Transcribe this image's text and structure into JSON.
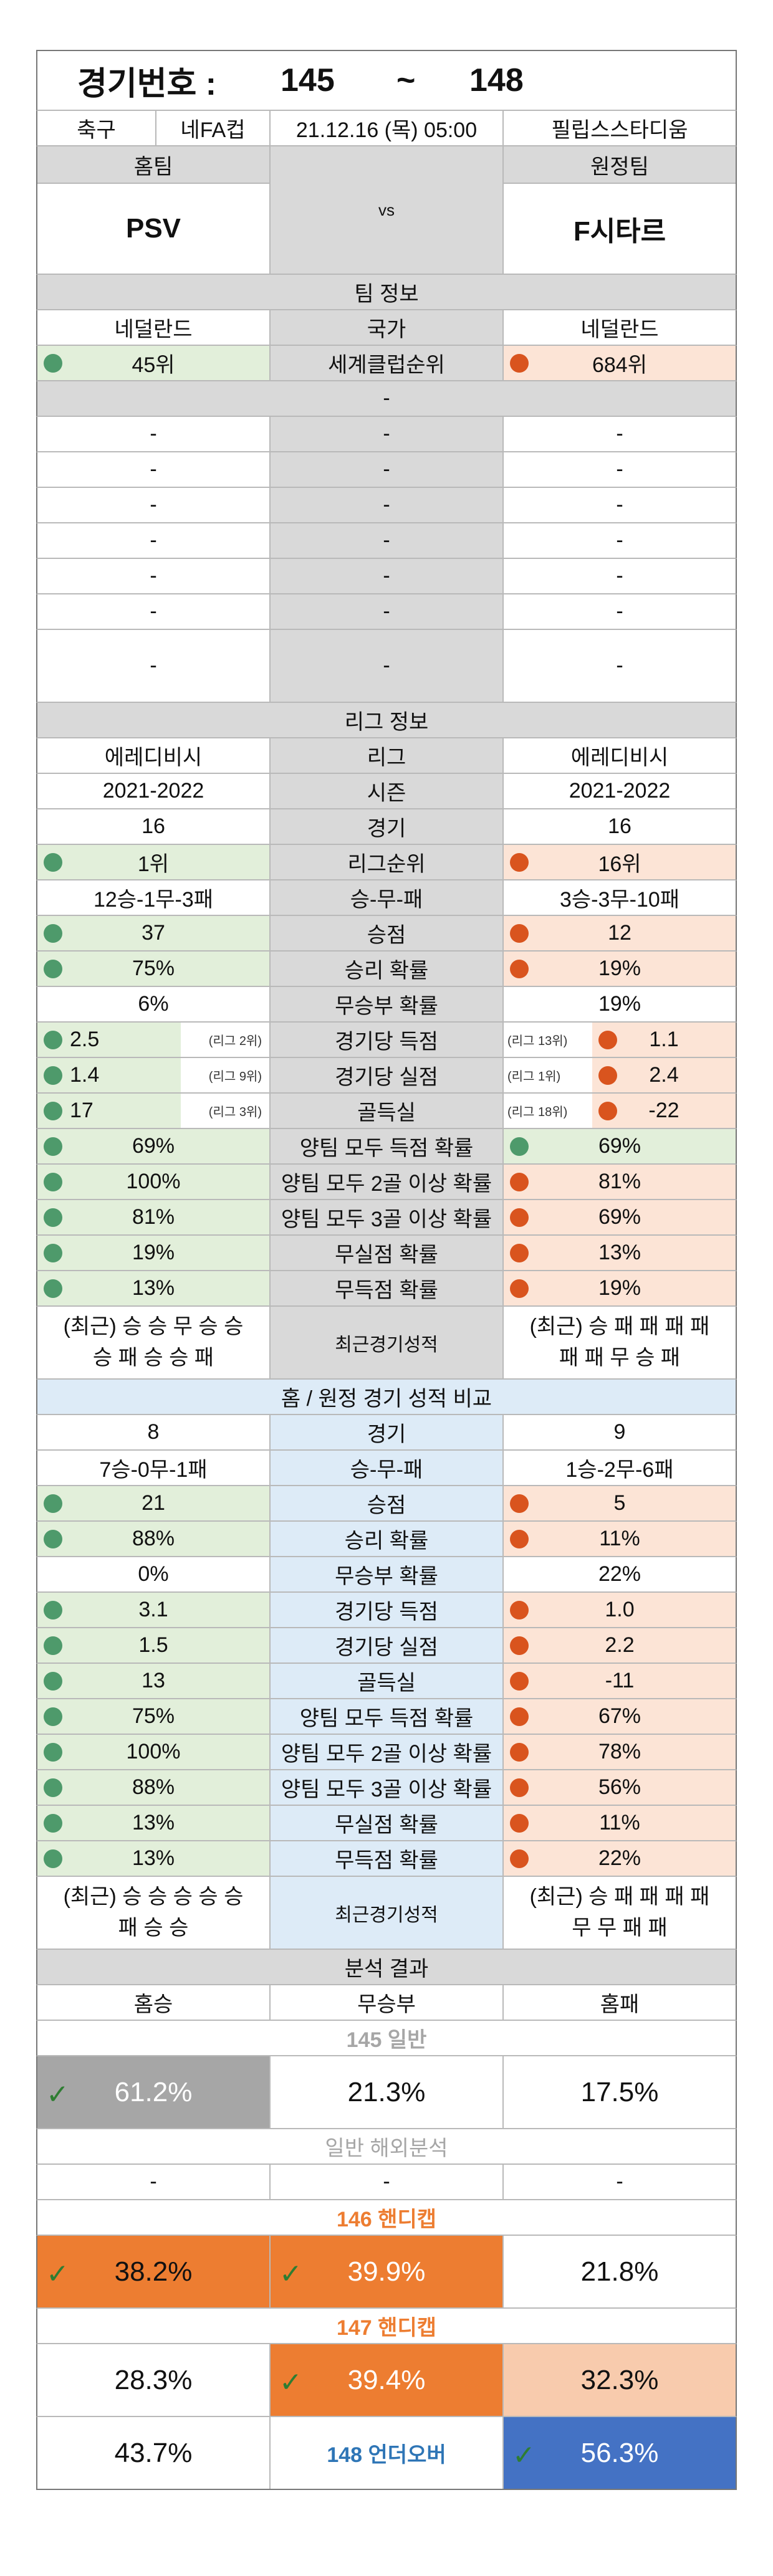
{
  "header": {
    "label": "경기번호 :",
    "from": "145",
    "tilde": "~",
    "to": "148"
  },
  "match": {
    "sport": "축구",
    "league": "네FA컵",
    "datetime": "21.12.16 (목) 05:00",
    "venue": "필립스스타디움",
    "home_label": "홈팀",
    "away_label": "원정팀",
    "home": "PSV",
    "vs": "vs",
    "away": "F시타르"
  },
  "team_info": {
    "title": "팀 정보",
    "home_country": "네덜란드",
    "country_label": "국가",
    "away_country": "네덜란드",
    "home_rank": "45위",
    "rank_label": "세계클럽순위",
    "away_rank": "684위",
    "dash": "-"
  },
  "league_info": {
    "title": "리그 정보",
    "rows": [
      {
        "home": "에레디비시",
        "label": "리그",
        "away": "에레디비시",
        "style": "plain"
      },
      {
        "home": "2021-2022",
        "label": "시즌",
        "away": "2021-2022",
        "style": "plain"
      },
      {
        "home": "16",
        "label": "경기",
        "away": "16",
        "style": "plain"
      },
      {
        "home": "1위",
        "label": "리그순위",
        "away": "16위",
        "style": "color"
      },
      {
        "home": "12승-1무-3패",
        "label": "승-무-패",
        "away": "3승-3무-10패",
        "style": "plain"
      },
      {
        "home": "37",
        "label": "승점",
        "away": "12",
        "style": "color"
      },
      {
        "home": "75%",
        "label": "승리 확률",
        "away": "19%",
        "style": "color"
      },
      {
        "home": "6%",
        "label": "무승부 확률",
        "away": "19%",
        "style": "plain"
      },
      {
        "home": "2.5",
        "home_rank": "(리그 2위)",
        "label": "경기당 득점",
        "away": "1.1",
        "away_rank": "(리그 13위)",
        "style": "ranked"
      },
      {
        "home": "1.4",
        "home_rank": "(리그 9위)",
        "label": "경기당 실점",
        "away": "2.4",
        "away_rank": "(리그 1위)",
        "style": "ranked"
      },
      {
        "home": "17",
        "home_rank": "(리그 3위)",
        "label": "골득실",
        "away": "-22",
        "away_rank": "(리그 18위)",
        "style": "ranked"
      },
      {
        "home": "69%",
        "label": "양팀 모두 득점 확률",
        "away": "69%",
        "style": "bothgreen"
      },
      {
        "home": "100%",
        "label": "양팀 모두 2골 이상 확률",
        "away": "81%",
        "style": "color"
      },
      {
        "home": "81%",
        "label": "양팀 모두 3골 이상 확률",
        "away": "69%",
        "style": "color"
      },
      {
        "home": "19%",
        "label": "무실점 확률",
        "away": "13%",
        "style": "color"
      },
      {
        "home": "13%",
        "label": "무득점 확률",
        "away": "19%",
        "style": "color"
      }
    ],
    "recent_home_1": "(최근) 승 승 무 승 승",
    "recent_home_2": "승 패 승 승 패",
    "recent_label": "최근경기성적",
    "recent_away_1": "(최근) 승 패 패 패 패",
    "recent_away_2": "패 패 무 승 패"
  },
  "compare": {
    "title": "홈 / 원정 경기 성적 비교",
    "rows": [
      {
        "home": "8",
        "label": "경기",
        "away": "9",
        "style": "plain"
      },
      {
        "home": "7승-0무-1패",
        "label": "승-무-패",
        "away": "1승-2무-6패",
        "style": "plain"
      },
      {
        "home": "21",
        "label": "승점",
        "away": "5",
        "style": "color"
      },
      {
        "home": "88%",
        "label": "승리 확률",
        "away": "11%",
        "style": "color"
      },
      {
        "home": "0%",
        "label": "무승부 확률",
        "away": "22%",
        "style": "plain"
      },
      {
        "home": "3.1",
        "label": "경기당 득점",
        "away": "1.0",
        "style": "color"
      },
      {
        "home": "1.5",
        "label": "경기당 실점",
        "away": "2.2",
        "style": "color"
      },
      {
        "home": "13",
        "label": "골득실",
        "away": "-11",
        "style": "color"
      },
      {
        "home": "75%",
        "label": "양팀 모두 득점 확률",
        "away": "67%",
        "style": "color"
      },
      {
        "home": "100%",
        "label": "양팀 모두 2골 이상 확률",
        "away": "78%",
        "style": "color"
      },
      {
        "home": "88%",
        "label": "양팀 모두 3골 이상 확률",
        "away": "56%",
        "style": "color"
      },
      {
        "home": "13%",
        "label": "무실점 확률",
        "away": "11%",
        "style": "color"
      },
      {
        "home": "13%",
        "label": "무득점 확률",
        "away": "22%",
        "style": "color"
      }
    ],
    "recent_home_1": "(최근) 승 승 승 승 승",
    "recent_home_2": "패 승 승",
    "recent_label": "최근경기성적",
    "recent_away_1": "(최근) 승 패 패 패 패",
    "recent_away_2": "무 무 패 패"
  },
  "analysis": {
    "title": "분석 결과",
    "home_win": "홈승",
    "draw": "무승부",
    "home_loss": "홈패",
    "g145": {
      "title": "145 일반",
      "home": "61.2%",
      "draw": "21.3%",
      "away": "17.5%"
    },
    "overseas": {
      "title": "일반 해외분석",
      "home": "-",
      "draw": "-",
      "away": "-"
    },
    "g146": {
      "title": "146 핸디캡",
      "home": "38.2%",
      "draw": "39.9%",
      "away": "21.8%"
    },
    "g147": {
      "title": "147 핸디캡",
      "home": "28.3%",
      "draw": "39.4%",
      "away": "32.3%"
    },
    "g148": {
      "title": "148 언더오버",
      "under": "43.7%",
      "over": "56.3%"
    }
  },
  "colors": {
    "green": "#e2efda",
    "peach": "#fce4d6",
    "orange": "#ed7d31",
    "gray": "#a6a6a6",
    "blue": "#4472c4",
    "light_orange": "#f8cbad"
  }
}
